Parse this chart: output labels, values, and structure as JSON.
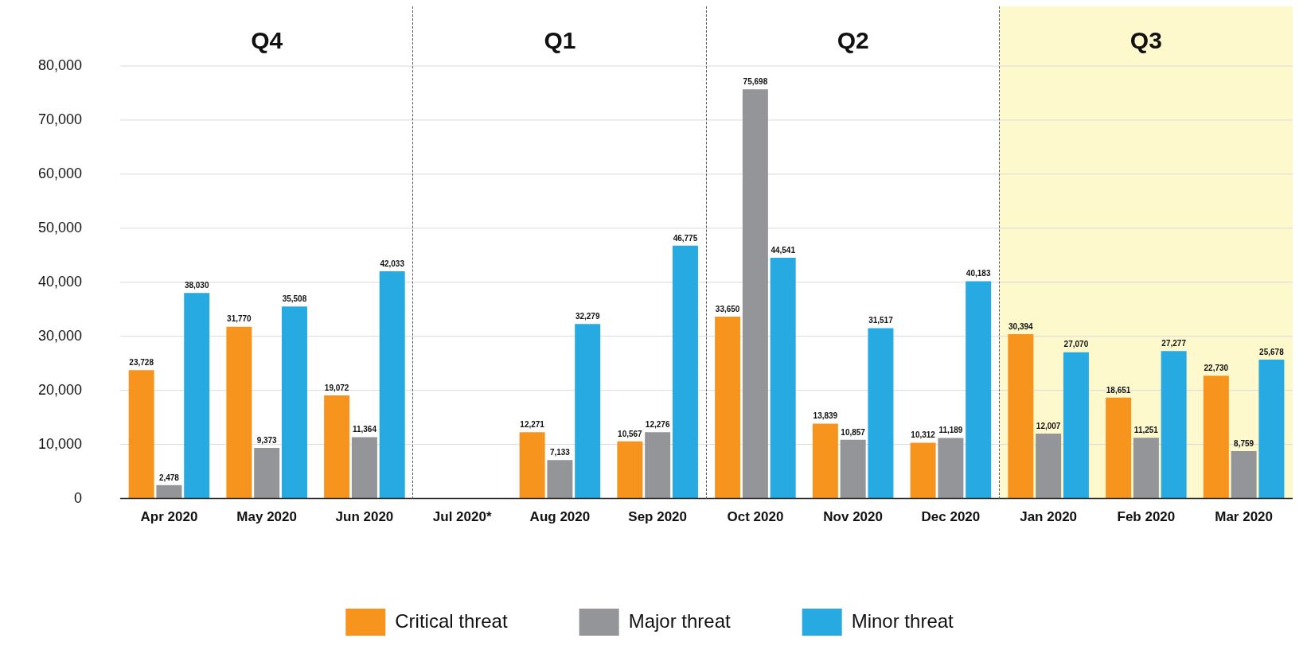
{
  "chart_data": {
    "type": "bar",
    "categories": [
      "Apr 2020",
      "May 2020",
      "Jun 2020",
      "Jul 2020*",
      "Aug 2020",
      "Sep 2020",
      "Oct 2020",
      "Nov 2020",
      "Dec 2020",
      "Jan 2020",
      "Feb 2020",
      "Mar 2020"
    ],
    "series": [
      {
        "name": "Critical threat",
        "color": "#f7941d",
        "values": [
          23728,
          31770,
          19072,
          null,
          12271,
          10567,
          33650,
          13839,
          10312,
          30394,
          18651,
          22730
        ],
        "value_labels": [
          "23,728",
          "31,770",
          "19,072",
          null,
          "12,271",
          "10,567",
          "33,650",
          "13,839",
          "10,312",
          "30,394",
          "18,651",
          "22,730"
        ]
      },
      {
        "name": "Major threat",
        "color": "#939598",
        "values": [
          2478,
          9373,
          11364,
          null,
          7133,
          12276,
          75698,
          10857,
          11189,
          12007,
          11251,
          8759
        ],
        "value_labels": [
          "2,478",
          "9,373",
          "11,364",
          null,
          "7,133",
          "12,276",
          "75,698",
          "10,857",
          "11,189",
          "12,007",
          "11,251",
          "8,759"
        ]
      },
      {
        "name": "Minor threat",
        "color": "#27aae1",
        "values": [
          38030,
          35508,
          42033,
          null,
          32279,
          46775,
          44541,
          31517,
          40183,
          27070,
          27277,
          25678
        ],
        "value_labels": [
          "38,030",
          "35,508",
          "42,033",
          null,
          "32,279",
          "46,775",
          "44,541",
          "31,517",
          "40,183",
          "27,070",
          "27,277",
          "25,678"
        ]
      }
    ],
    "ylim": [
      0,
      80000
    ],
    "yticks": [
      {
        "value": 0,
        "label": "0"
      },
      {
        "value": 10000,
        "label": "10,000"
      },
      {
        "value": 20000,
        "label": "20,000"
      },
      {
        "value": 30000,
        "label": "30,000"
      },
      {
        "value": 40000,
        "label": "40,000"
      },
      {
        "value": 50000,
        "label": "50,000"
      },
      {
        "value": 60000,
        "label": "60,000"
      },
      {
        "value": 70000,
        "label": "70,000"
      },
      {
        "value": 80000,
        "label": "80,000"
      }
    ],
    "bands": [
      {
        "axis": "x",
        "from": "Jan 2020",
        "to": "Mar 2020",
        "label": "Q3",
        "color": "#fdf9cc"
      }
    ],
    "annotations": [
      "Q4",
      "Q1",
      "Q2"
    ],
    "grid": "y",
    "legend": "bottom"
  }
}
